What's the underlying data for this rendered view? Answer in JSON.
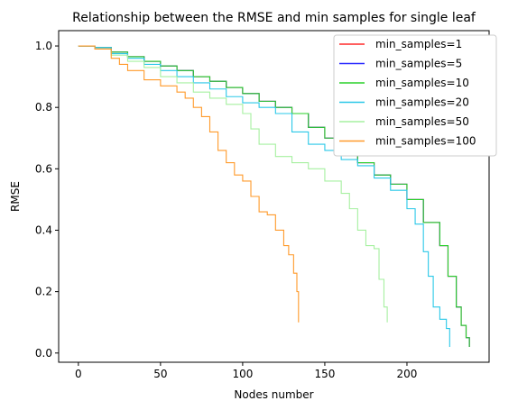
{
  "chart_data": {
    "type": "line",
    "title": "Relationship between the RMSE and min samples for single leaf",
    "xlabel": "Nodes number",
    "ylabel": "RMSE",
    "xlim": [
      -12,
      250
    ],
    "ylim": [
      -0.03,
      1.05
    ],
    "xticks": [
      0,
      50,
      100,
      150,
      200
    ],
    "yticks": [
      0.0,
      0.2,
      0.4,
      0.6,
      0.8,
      1.0
    ],
    "ytick_labels": [
      "0.0",
      "0.2",
      "0.4",
      "0.6",
      "0.8",
      "1.0"
    ],
    "grid": false,
    "legend_position": "top-right",
    "series": [
      {
        "name": "min_samples=1",
        "color": "#ff2a2a",
        "x": [
          0,
          5,
          10,
          20,
          30,
          40,
          50,
          60,
          70,
          80,
          90,
          100,
          110,
          120,
          130,
          140,
          150,
          160,
          170,
          180,
          190,
          200,
          210,
          220,
          225,
          230,
          233,
          236,
          238
        ],
        "y": [
          1.0,
          1.0,
          0.995,
          0.98,
          0.965,
          0.95,
          0.935,
          0.92,
          0.9,
          0.885,
          0.865,
          0.845,
          0.82,
          0.8,
          0.78,
          0.735,
          0.7,
          0.655,
          0.62,
          0.58,
          0.55,
          0.5,
          0.425,
          0.35,
          0.25,
          0.15,
          0.09,
          0.05,
          0.02
        ]
      },
      {
        "name": "min_samples=5",
        "color": "#2a2aff",
        "x": [
          0,
          5,
          10,
          20,
          30,
          40,
          50,
          60,
          70,
          80,
          90,
          100,
          110,
          120,
          130,
          140,
          150,
          160,
          170,
          180,
          190,
          200,
          210,
          220,
          225,
          230,
          233,
          236,
          238
        ],
        "y": [
          1.0,
          1.0,
          0.995,
          0.98,
          0.965,
          0.95,
          0.935,
          0.92,
          0.9,
          0.885,
          0.865,
          0.845,
          0.82,
          0.8,
          0.78,
          0.735,
          0.7,
          0.655,
          0.62,
          0.58,
          0.55,
          0.5,
          0.425,
          0.35,
          0.25,
          0.15,
          0.09,
          0.05,
          0.02
        ]
      },
      {
        "name": "min_samples=10",
        "color": "#2ad02a",
        "x": [
          0,
          5,
          10,
          20,
          30,
          40,
          50,
          60,
          70,
          80,
          90,
          100,
          110,
          120,
          130,
          140,
          150,
          160,
          170,
          180,
          190,
          200,
          210,
          220,
          225,
          230,
          233,
          236,
          238
        ],
        "y": [
          1.0,
          1.0,
          0.995,
          0.98,
          0.965,
          0.95,
          0.935,
          0.92,
          0.9,
          0.885,
          0.865,
          0.845,
          0.82,
          0.8,
          0.78,
          0.735,
          0.7,
          0.655,
          0.62,
          0.58,
          0.55,
          0.5,
          0.425,
          0.35,
          0.25,
          0.15,
          0.09,
          0.05,
          0.02
        ]
      },
      {
        "name": "min_samples=20",
        "color": "#2ac8e8",
        "x": [
          0,
          5,
          10,
          20,
          30,
          40,
          50,
          60,
          70,
          80,
          90,
          100,
          110,
          120,
          130,
          140,
          150,
          160,
          170,
          180,
          190,
          200,
          205,
          210,
          213,
          216,
          220,
          224,
          226
        ],
        "y": [
          1.0,
          1.0,
          0.995,
          0.975,
          0.96,
          0.94,
          0.92,
          0.9,
          0.88,
          0.86,
          0.835,
          0.815,
          0.8,
          0.78,
          0.72,
          0.68,
          0.66,
          0.63,
          0.61,
          0.57,
          0.53,
          0.47,
          0.42,
          0.33,
          0.25,
          0.15,
          0.11,
          0.08,
          0.02
        ]
      },
      {
        "name": "min_samples=50",
        "color": "#a6f0a0",
        "x": [
          0,
          5,
          10,
          20,
          30,
          40,
          50,
          60,
          70,
          80,
          90,
          100,
          105,
          110,
          120,
          130,
          140,
          150,
          160,
          165,
          170,
          175,
          180,
          183,
          186,
          188
        ],
        "y": [
          1.0,
          1.0,
          0.99,
          0.97,
          0.95,
          0.93,
          0.9,
          0.88,
          0.85,
          0.83,
          0.81,
          0.78,
          0.73,
          0.68,
          0.64,
          0.62,
          0.6,
          0.56,
          0.52,
          0.47,
          0.4,
          0.35,
          0.34,
          0.24,
          0.15,
          0.1
        ]
      },
      {
        "name": "min_samples=100",
        "color": "#ff9a2a",
        "x": [
          0,
          5,
          10,
          20,
          25,
          30,
          40,
          50,
          60,
          65,
          70,
          75,
          80,
          85,
          90,
          95,
          100,
          105,
          110,
          115,
          120,
          125,
          128,
          131,
          133,
          134
        ],
        "y": [
          1.0,
          1.0,
          0.99,
          0.96,
          0.94,
          0.92,
          0.89,
          0.87,
          0.85,
          0.83,
          0.8,
          0.77,
          0.72,
          0.66,
          0.62,
          0.58,
          0.56,
          0.51,
          0.46,
          0.45,
          0.4,
          0.35,
          0.32,
          0.26,
          0.2,
          0.1
        ]
      }
    ]
  }
}
